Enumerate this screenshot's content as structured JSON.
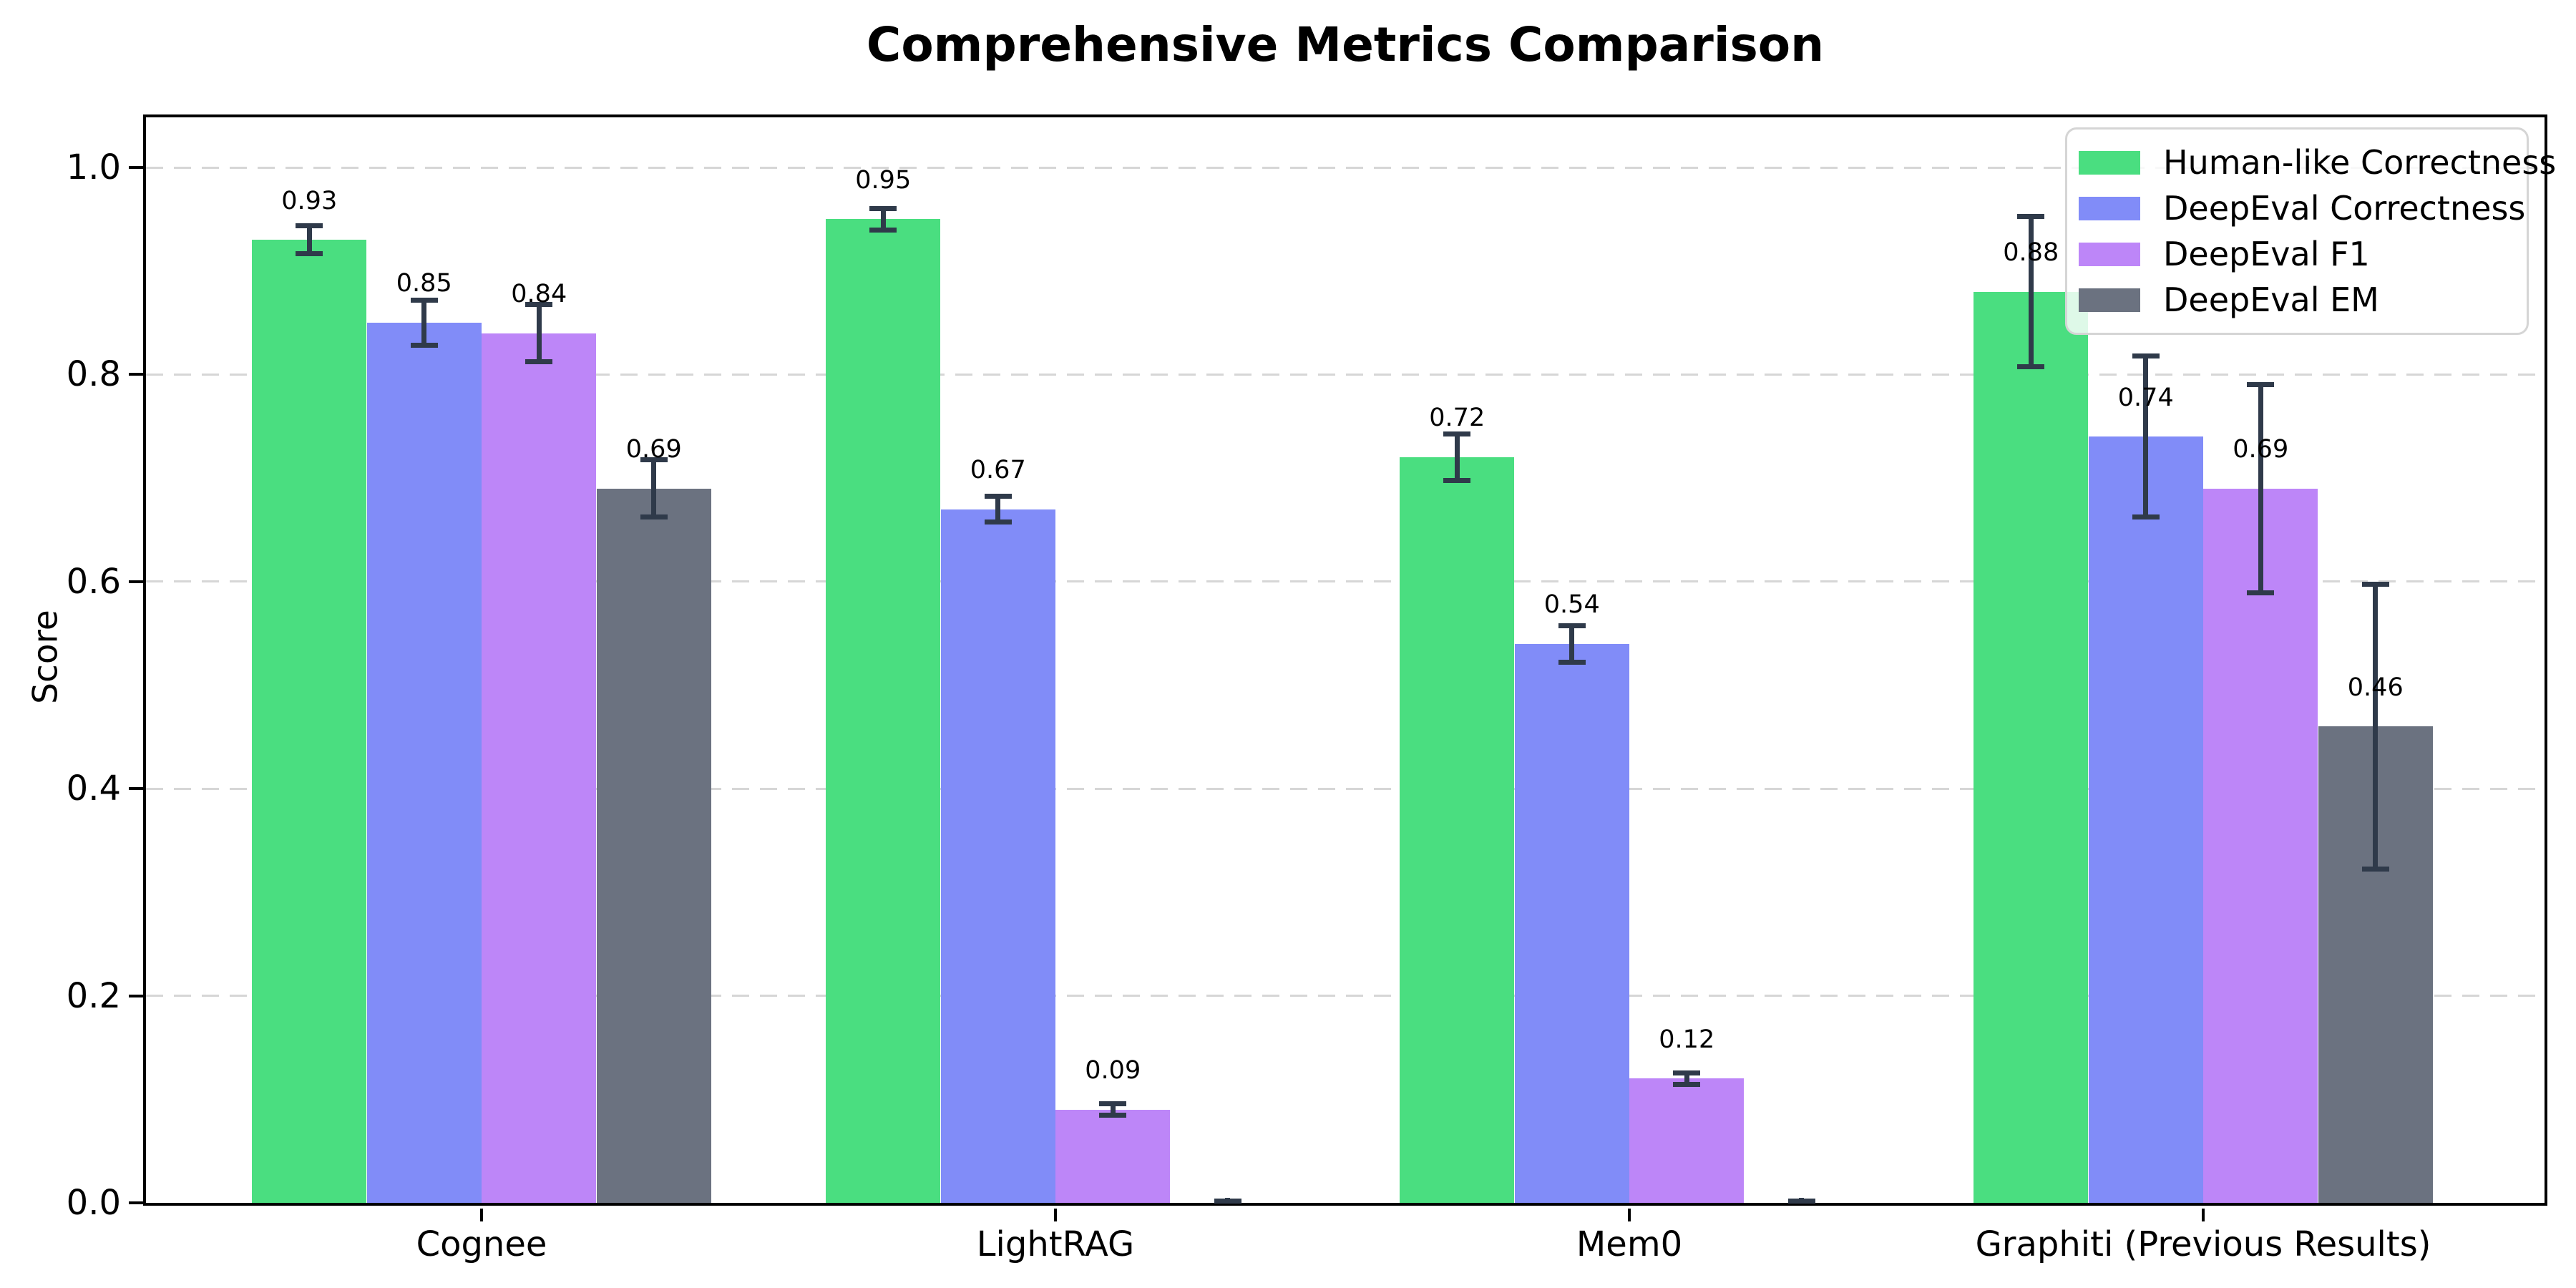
{
  "chart_data": {
    "type": "bar",
    "title": "Comprehensive Metrics Comparison",
    "xlabel": "",
    "ylabel": "Score",
    "categories": [
      "Cognee",
      "LightRAG",
      "Mem0",
      "Graphiti (Previous Results)"
    ],
    "series": [
      {
        "name": "Human-like Correctness",
        "color": "#4ade80",
        "values": [
          0.93,
          0.95,
          0.72,
          0.88
        ],
        "errors": [
          0.016,
          0.013,
          0.025,
          0.075
        ],
        "labels": [
          "0.93",
          "0.95",
          "0.72",
          "0.88"
        ]
      },
      {
        "name": "DeepEval Correctness",
        "color": "#818cf8",
        "values": [
          0.85,
          0.67,
          0.54,
          0.74
        ],
        "errors": [
          0.024,
          0.015,
          0.02,
          0.08
        ],
        "labels": [
          "0.85",
          "0.67",
          "0.54",
          "0.74"
        ]
      },
      {
        "name": "DeepEval F1",
        "color": "#bd86f8",
        "values": [
          0.84,
          0.09,
          0.12,
          0.69
        ],
        "errors": [
          0.03,
          0.008,
          0.008,
          0.103
        ],
        "labels": [
          "0.84",
          "0.09",
          "0.12",
          "0.69"
        ]
      },
      {
        "name": "DeepEval EM",
        "color": "#6b7280",
        "values": [
          0.69,
          0.0,
          0.0,
          0.46
        ],
        "errors": [
          0.03,
          0.004,
          0.004,
          0.14
        ],
        "labels": [
          "0.69",
          null,
          null,
          "0.46"
        ]
      }
    ],
    "ylim": [
      0,
      1.05
    ],
    "yticks": [
      0.0,
      0.2,
      0.4,
      0.6,
      0.8,
      1.0
    ],
    "ytick_labels": [
      "0.0",
      "0.2",
      "0.4",
      "0.6",
      "0.8",
      "1.0"
    ],
    "grid": {
      "axis": "y",
      "style": "dashed",
      "color": "#d6d6d6"
    },
    "legend_position": "upper right",
    "error_bar_color": "#2f3a4a"
  }
}
